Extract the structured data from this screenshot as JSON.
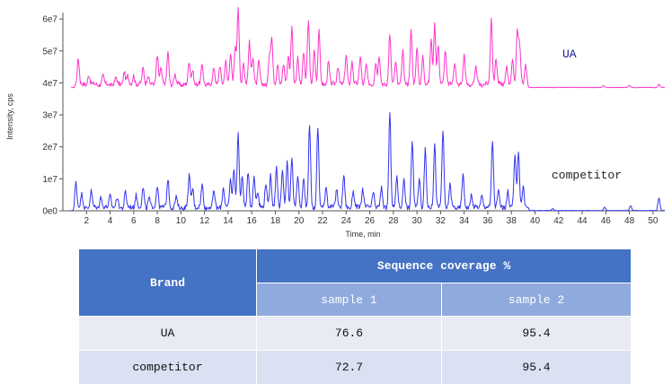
{
  "chart_data": {
    "type": "line",
    "xlabel": "Time, min",
    "ylabel": "Intensity, cps",
    "xlim": [
      0,
      51
    ],
    "ylim": [
      0,
      62000000
    ],
    "x_ticks": [
      2,
      4,
      6,
      8,
      10,
      12,
      14,
      16,
      18,
      20,
      22,
      24,
      26,
      28,
      30,
      32,
      34,
      36,
      38,
      40,
      42,
      44,
      46,
      48,
      50
    ],
    "y_ticks": [
      {
        "value": 0,
        "label": "0e0"
      },
      {
        "value": 10000000,
        "label": "1e7"
      },
      {
        "value": 20000000,
        "label": "2e7"
      },
      {
        "value": 30000000,
        "label": "3e7"
      },
      {
        "value": 40000000,
        "label": "4e7"
      },
      {
        "value": 50000000,
        "label": "5e7"
      },
      {
        "value": 60000000,
        "label": "6e7"
      }
    ],
    "series": [
      {
        "name": "UA",
        "color": "#ff33cc",
        "baseline": 38500000,
        "peaks": [
          [
            1.3,
            8000000
          ],
          [
            2.2,
            3000000
          ],
          [
            3.4,
            2500000
          ],
          [
            4.5,
            2000000
          ],
          [
            5.2,
            4000000
          ],
          [
            5.5,
            2500000
          ],
          [
            6.0,
            3000000
          ],
          [
            6.8,
            5000000
          ],
          [
            7.2,
            3000000
          ],
          [
            8.0,
            9000000
          ],
          [
            8.3,
            5000000
          ],
          [
            8.9,
            10000000
          ],
          [
            9.5,
            3000000
          ],
          [
            10.7,
            7000000
          ],
          [
            11.0,
            4500000
          ],
          [
            11.8,
            6000000
          ],
          [
            12.8,
            5000000
          ],
          [
            13.3,
            6000000
          ],
          [
            13.8,
            7000000
          ],
          [
            14.2,
            10000000
          ],
          [
            14.6,
            11000000
          ],
          [
            14.85,
            24000000
          ],
          [
            15.3,
            7000000
          ],
          [
            15.8,
            13000000
          ],
          [
            16.1,
            9000000
          ],
          [
            16.6,
            7000000
          ],
          [
            17.5,
            9000000
          ],
          [
            17.7,
            14000000
          ],
          [
            18.2,
            7000000
          ],
          [
            18.7,
            6000000
          ],
          [
            19.1,
            9000000
          ],
          [
            19.4,
            18000000
          ],
          [
            19.9,
            8000000
          ],
          [
            20.4,
            10000000
          ],
          [
            20.8,
            20000000
          ],
          [
            21.3,
            11000000
          ],
          [
            21.7,
            17000000
          ],
          [
            22.5,
            7000000
          ],
          [
            23.3,
            6000000
          ],
          [
            24.0,
            9000000
          ],
          [
            24.5,
            7000000
          ],
          [
            25.2,
            9000000
          ],
          [
            25.7,
            6000000
          ],
          [
            26.5,
            7000000
          ],
          [
            26.8,
            9000000
          ],
          [
            27.7,
            16000000
          ],
          [
            28.2,
            7000000
          ],
          [
            28.8,
            10000000
          ],
          [
            29.5,
            17000000
          ],
          [
            30.0,
            11000000
          ],
          [
            30.5,
            9000000
          ],
          [
            31.2,
            14000000
          ],
          [
            31.5,
            19000000
          ],
          [
            31.8,
            12000000
          ],
          [
            32.4,
            11000000
          ],
          [
            33.2,
            7000000
          ],
          [
            34.0,
            9000000
          ],
          [
            35.0,
            5000000
          ],
          [
            36.3,
            21000000
          ],
          [
            36.7,
            8000000
          ],
          [
            37.6,
            6000000
          ],
          [
            38.1,
            7000000
          ],
          [
            38.5,
            17000000
          ],
          [
            38.7,
            12000000
          ],
          [
            39.2,
            6000000
          ],
          [
            45.8,
            500000
          ],
          [
            48.0,
            700000
          ],
          [
            50.5,
            1000000
          ]
        ]
      },
      {
        "name": "competitor",
        "color": "#3333ee",
        "baseline": 0,
        "peaks": [
          [
            1.1,
            8000000
          ],
          [
            1.6,
            4000000
          ],
          [
            2.4,
            5000000
          ],
          [
            3.2,
            3500000
          ],
          [
            4.0,
            4000000
          ],
          [
            4.6,
            3000000
          ],
          [
            5.3,
            5000000
          ],
          [
            6.2,
            4000000
          ],
          [
            6.8,
            6000000
          ],
          [
            7.3,
            3000000
          ],
          [
            8.0,
            7000000
          ],
          [
            8.9,
            9000000
          ],
          [
            9.6,
            3000000
          ],
          [
            10.7,
            10000000
          ],
          [
            11.0,
            6000000
          ],
          [
            11.8,
            7000000
          ],
          [
            12.8,
            5000000
          ],
          [
            13.6,
            6000000
          ],
          [
            14.2,
            9000000
          ],
          [
            14.5,
            12000000
          ],
          [
            14.85,
            23000000
          ],
          [
            15.2,
            10000000
          ],
          [
            15.7,
            11000000
          ],
          [
            16.2,
            10000000
          ],
          [
            16.5,
            5000000
          ],
          [
            17.2,
            8000000
          ],
          [
            17.6,
            10000000
          ],
          [
            18.1,
            13000000
          ],
          [
            18.6,
            11000000
          ],
          [
            19.0,
            14000000
          ],
          [
            19.4,
            16000000
          ],
          [
            19.9,
            10000000
          ],
          [
            20.4,
            9000000
          ],
          [
            20.9,
            26000000
          ],
          [
            21.6,
            25000000
          ],
          [
            22.3,
            7000000
          ],
          [
            23.2,
            6000000
          ],
          [
            23.8,
            10000000
          ],
          [
            24.6,
            5000000
          ],
          [
            25.4,
            6000000
          ],
          [
            26.3,
            5000000
          ],
          [
            27.0,
            6000000
          ],
          [
            27.7,
            29000000
          ],
          [
            28.3,
            10000000
          ],
          [
            28.9,
            9000000
          ],
          [
            29.6,
            21000000
          ],
          [
            30.2,
            9000000
          ],
          [
            30.7,
            18000000
          ],
          [
            31.5,
            20000000
          ],
          [
            32.2,
            24000000
          ],
          [
            32.8,
            7000000
          ],
          [
            33.9,
            10000000
          ],
          [
            34.6,
            4000000
          ],
          [
            35.5,
            4000000
          ],
          [
            36.4,
            21000000
          ],
          [
            36.9,
            5000000
          ],
          [
            37.7,
            5000000
          ],
          [
            38.3,
            16000000
          ],
          [
            38.6,
            18000000
          ],
          [
            39.0,
            6000000
          ],
          [
            41.5,
            600000
          ],
          [
            45.9,
            1000000
          ],
          [
            48.1,
            1500000
          ],
          [
            50.5,
            4000000
          ]
        ]
      }
    ],
    "series_labels": [
      "UA",
      "competitor"
    ]
  },
  "table": {
    "brand_header": "Brand",
    "group_header": "Sequence coverage %",
    "sub_headers": [
      "sample 1",
      "sample 2"
    ],
    "rows": [
      {
        "brand": "UA",
        "sample1": "76.6",
        "sample2": "95.4"
      },
      {
        "brand": "competitor",
        "sample1": "72.7",
        "sample2": "95.4"
      }
    ]
  }
}
